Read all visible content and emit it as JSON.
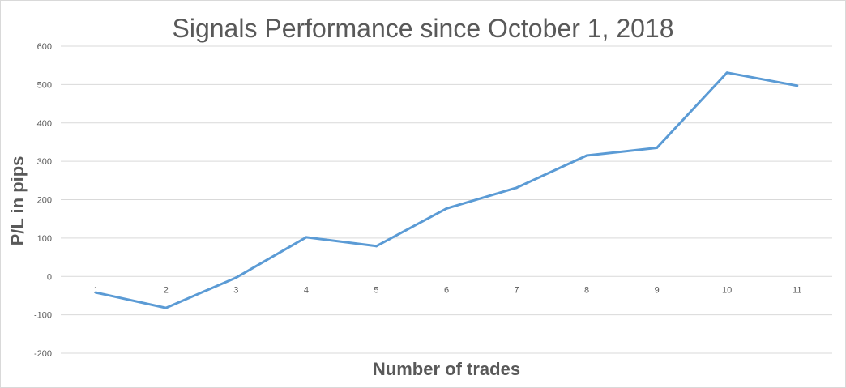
{
  "chart_data": {
    "type": "line",
    "title": "Signals Performance since October 1, 2018",
    "xlabel": "Number of trades",
    "ylabel": "P/L in pips",
    "x": [
      1,
      2,
      3,
      4,
      5,
      6,
      7,
      8,
      9,
      10,
      11
    ],
    "series": [
      {
        "values": [
          -42,
          -82,
          -3,
          102,
          79,
          177,
          231,
          315,
          335,
          531,
          497
        ],
        "color": "#5b9bd5"
      }
    ],
    "ylim": [
      -200,
      600
    ],
    "yticks": [
      -200,
      -100,
      0,
      100,
      200,
      300,
      400,
      500,
      600
    ],
    "xticks": [
      "1",
      "2",
      "3",
      "4",
      "5",
      "6",
      "7",
      "8",
      "9",
      "10",
      "11"
    ],
    "grid": true,
    "legend": "none"
  }
}
